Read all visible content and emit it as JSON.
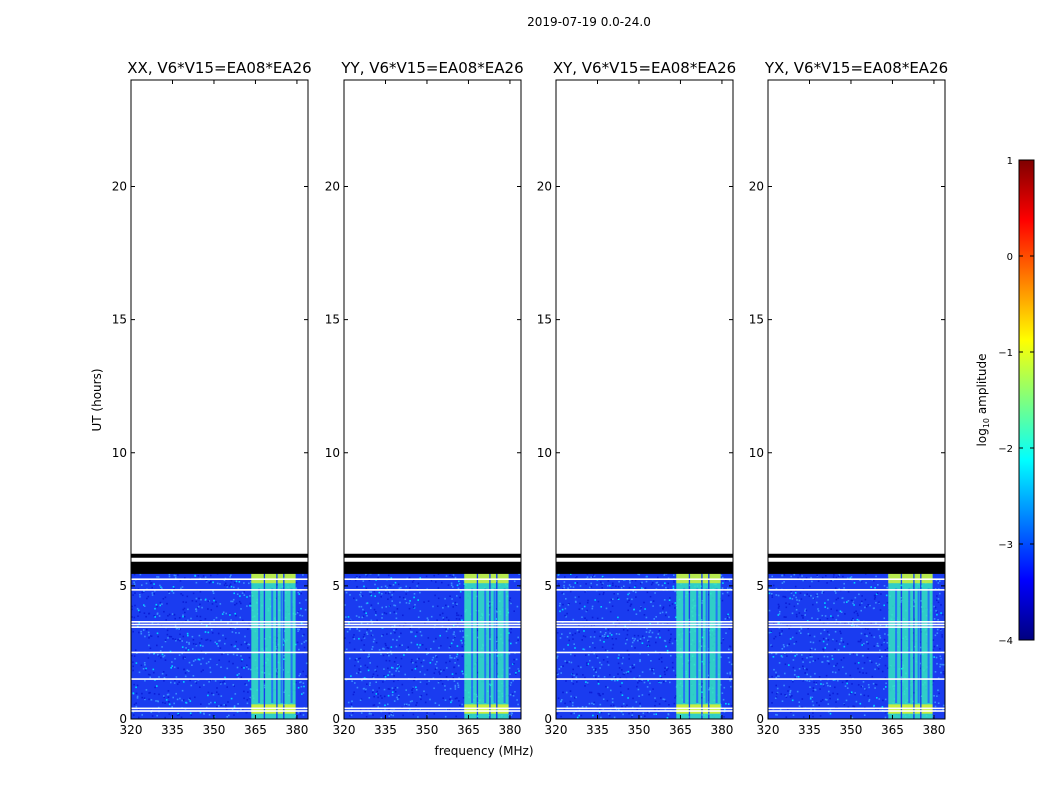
{
  "figure": {
    "suptitle": "2019-07-19 0.0-24.0",
    "xlabel": "frequency (MHz)",
    "ylabel": "UT (hours)"
  },
  "colorbar": {
    "label_prefix": "log",
    "label_sub": "10",
    "label_suffix": " amplitude",
    "range": [
      -4,
      1
    ],
    "ticks": [
      1,
      0,
      -1,
      -2,
      -3,
      -4
    ],
    "tick_labels": [
      "1",
      "0",
      "−1",
      "−2",
      "−3",
      "−4"
    ],
    "colormap": "jet",
    "colors": [
      "#00007f",
      "#0000ff",
      "#007fff",
      "#00ffff",
      "#7fff7f",
      "#ffff00",
      "#ff7f00",
      "#ff0000",
      "#7f0000"
    ]
  },
  "colors": {
    "background": "#ffffff",
    "axis": "#000000",
    "flagged_band": "#000000",
    "data_noise_low": "#0a1fd8",
    "data_noise_high": "#3a8cff",
    "rfi_band": "#35e8c0",
    "rfi_strong": "#d8f030"
  },
  "chart_data": [
    {
      "type": "heatmap",
      "title": "XX, V6*V15=EA08*EA26",
      "xticks": [
        320,
        335,
        350,
        365,
        380
      ],
      "yticks": [
        0,
        5,
        10,
        15,
        20
      ],
      "xlim": [
        320,
        384
      ],
      "ylim": [
        0,
        24
      ],
      "data_extent_hours": [
        0,
        5.5
      ],
      "flagged_rows_hours": [
        6.15,
        5.85,
        5.75,
        5.6
      ],
      "gap_rows_hours": [
        0.3,
        0.4,
        1.5,
        2.5,
        3.45,
        3.55,
        3.65,
        4.85,
        5.25
      ],
      "rfi_channels_mhz": [
        [
          363.5,
          368
        ],
        [
          368.5,
          372.5
        ],
        [
          373,
          375
        ],
        [
          375.5,
          379.5
        ]
      ],
      "rfi_level_log10": -1.8
    },
    {
      "type": "heatmap",
      "title": "YY, V6*V15=EA08*EA26",
      "xticks": [
        320,
        335,
        350,
        365,
        380
      ],
      "yticks": [
        0,
        5,
        10,
        15,
        20
      ],
      "xlim": [
        320,
        384
      ],
      "ylim": [
        0,
        24
      ],
      "data_extent_hours": [
        0,
        5.5
      ],
      "flagged_rows_hours": [
        6.15,
        5.85,
        5.75,
        5.6
      ],
      "gap_rows_hours": [
        0.3,
        0.4,
        1.5,
        2.5,
        3.45,
        3.55,
        3.65,
        4.85,
        5.25
      ],
      "rfi_channels_mhz": [
        [
          363.5,
          368
        ],
        [
          368.5,
          372.5
        ],
        [
          373,
          375
        ],
        [
          375.5,
          379.5
        ]
      ],
      "rfi_level_log10": -2.0
    },
    {
      "type": "heatmap",
      "title": "XY, V6*V15=EA08*EA26",
      "xticks": [
        320,
        335,
        350,
        365,
        380
      ],
      "yticks": [
        0,
        5,
        10,
        15,
        20
      ],
      "xlim": [
        320,
        384
      ],
      "ylim": [
        0,
        24
      ],
      "data_extent_hours": [
        0,
        5.5
      ],
      "flagged_rows_hours": [
        6.15,
        5.85,
        5.75,
        5.6
      ],
      "gap_rows_hours": [
        0.3,
        0.4,
        1.5,
        2.5,
        3.45,
        3.55,
        3.65,
        4.85,
        5.25
      ],
      "rfi_channels_mhz": [
        [
          363.5,
          368
        ],
        [
          368.5,
          372.5
        ],
        [
          373,
          375
        ],
        [
          375.5,
          379.5
        ]
      ],
      "rfi_level_log10": -1.9
    },
    {
      "type": "heatmap",
      "title": "YX, V6*V15=EA08*EA26",
      "xticks": [
        320,
        335,
        350,
        365,
        380
      ],
      "yticks": [
        0,
        5,
        10,
        15,
        20
      ],
      "xlim": [
        320,
        384
      ],
      "ylim": [
        0,
        24
      ],
      "data_extent_hours": [
        0,
        5.5
      ],
      "flagged_rows_hours": [
        6.15,
        5.85,
        5.75,
        5.6
      ],
      "gap_rows_hours": [
        0.3,
        0.4,
        1.5,
        2.5,
        3.45,
        3.55,
        3.65,
        4.85,
        5.25
      ],
      "rfi_channels_mhz": [
        [
          363.5,
          368
        ],
        [
          368.5,
          372.5
        ],
        [
          373,
          375
        ],
        [
          375.5,
          379.5
        ]
      ],
      "rfi_level_log10": -1.9
    }
  ]
}
